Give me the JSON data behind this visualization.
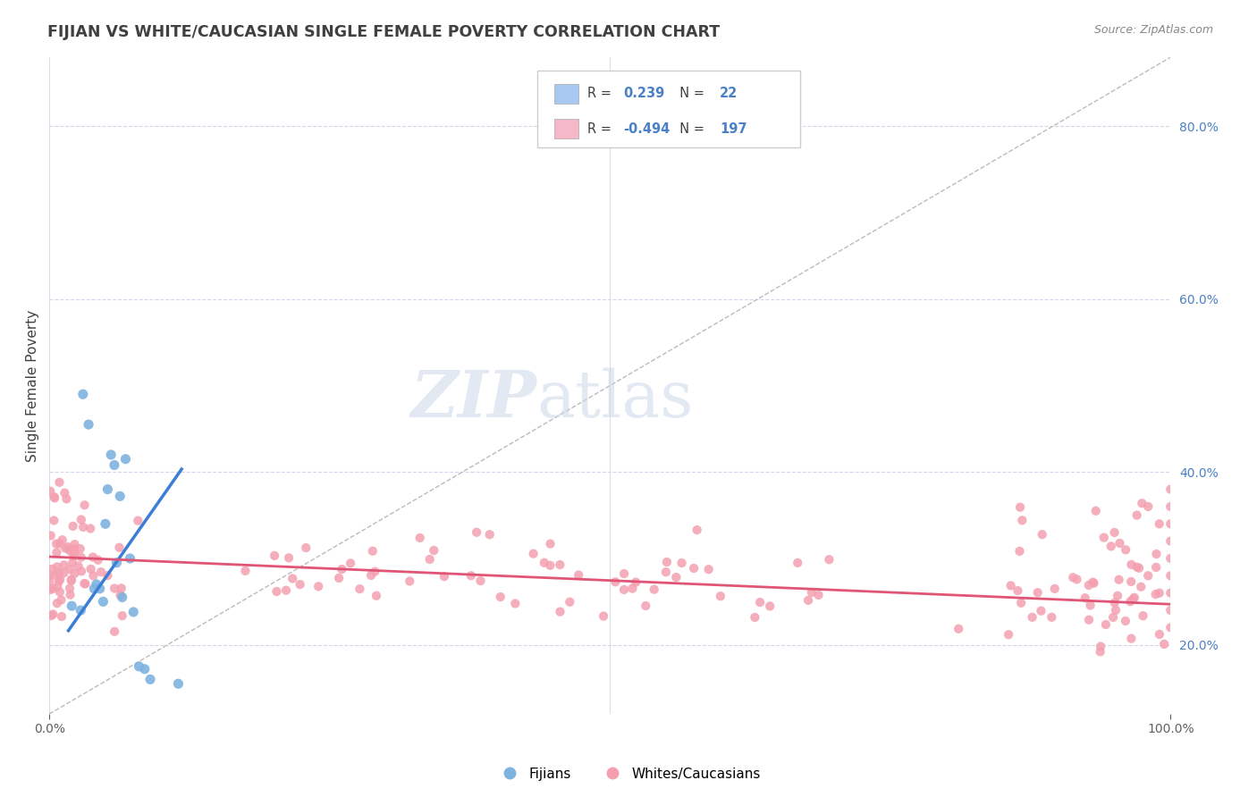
{
  "title": "FIJIAN VS WHITE/CAUCASIAN SINGLE FEMALE POVERTY CORRELATION CHART",
  "source": "Source: ZipAtlas.com",
  "ylabel": "Single Female Poverty",
  "legend_label1": "Fijians",
  "legend_label2": "Whites/Caucasians",
  "r1": 0.239,
  "n1": 22,
  "r2": -0.494,
  "n2": 197,
  "xlim": [
    0.0,
    1.0
  ],
  "ylim": [
    0.12,
    0.88
  ],
  "ytick_vals": [
    0.2,
    0.4,
    0.6,
    0.8
  ],
  "ytick_labels": [
    "20.0%",
    "40.0%",
    "60.0%",
    "80.0%"
  ],
  "blue_color": "#7eb3e0",
  "pink_color": "#f4a0b0",
  "blue_line_color": "#3a7fd5",
  "pink_line_color": "#e05575",
  "grid_color": "#d0d8e8",
  "legend_box_color1": "#a8c8f0",
  "legend_box_color2": "#f4b8c8",
  "title_color": "#404040",
  "source_color": "#888888",
  "text_color_dark": "#404040",
  "text_color_blue": "#4a80c8",
  "diag_color": "#bbbbbb",
  "blue_scatter_x": [
    0.02,
    0.028,
    0.03,
    0.035,
    0.04,
    0.042,
    0.045,
    0.048,
    0.05,
    0.052,
    0.055,
    0.058,
    0.06,
    0.063,
    0.065,
    0.068,
    0.072,
    0.075,
    0.08,
    0.085,
    0.09,
    0.115
  ],
  "blue_scatter_y": [
    0.245,
    0.24,
    0.49,
    0.455,
    0.265,
    0.27,
    0.265,
    0.25,
    0.34,
    0.38,
    0.42,
    0.408,
    0.295,
    0.372,
    0.255,
    0.415,
    0.3,
    0.238,
    0.175,
    0.172,
    0.16,
    0.155
  ],
  "pink_intercept": 0.302,
  "pink_slope": -0.055,
  "blue_intercept": 0.185,
  "blue_slope": 1.85
}
